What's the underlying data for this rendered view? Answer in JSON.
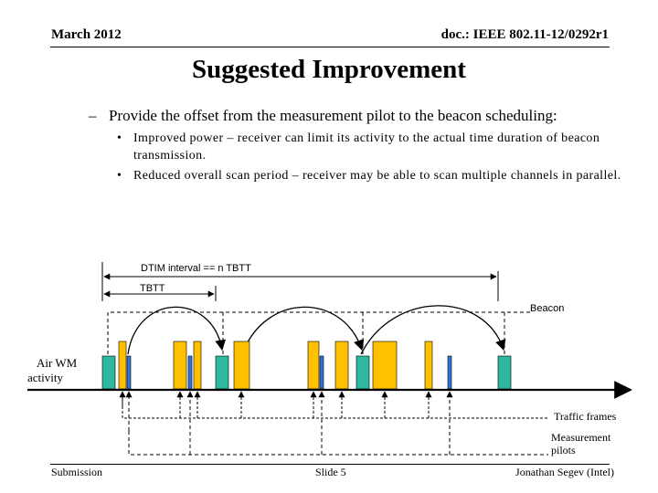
{
  "header": {
    "date": "March 2012",
    "doc_id": "doc.: IEEE 802.11-12/0292r1"
  },
  "title": "Suggested Improvement",
  "body": {
    "dash_item": "Provide the offset from the measurement pilot to the beacon scheduling:",
    "bullets": [
      "Improved power – receiver can limit its activity to the actual time duration of beacon transmission.",
      "Reduced overall scan period – receiver may be able to scan multiple channels in parallel."
    ]
  },
  "diagram": {
    "dtim_label": "DTIM interval == n TBTT",
    "tbtt_label": "TBTT",
    "beacon_label": "Beacon",
    "air_wm_label_line1": "Air WM",
    "air_wm_label_line2": "activity",
    "traffic_label": "Traffic frames",
    "pilot_label_line1": "Measurement",
    "pilot_label_line2": "pilots",
    "colors": {
      "beacon_fill": "#2fb8a0",
      "traffic_fill": "#ffc000",
      "pilot_fill": "#2e75d6"
    }
  },
  "footer": {
    "left": "Submission",
    "center": "Slide 5",
    "right": "Jonathan Segev (Intel)"
  }
}
